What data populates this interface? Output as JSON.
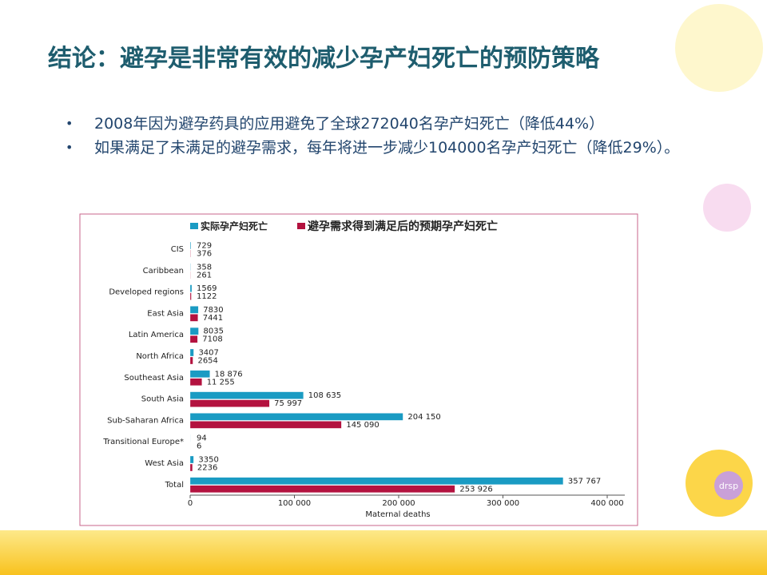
{
  "title": "结论：避孕是非常有效的减少孕产妇死亡的预防策略",
  "bullets": [
    "2008年因为避孕药具的应用避免了全球272040名孕产妇死亡（降低44%）",
    "如果满足了未满足的避孕需求，每年将进一步减少104000名孕产妇死亡（降低29%）。"
  ],
  "chart_data": {
    "type": "bar",
    "orientation": "horizontal",
    "categories": [
      "CIS",
      "Caribbean",
      "Developed regions",
      "East Asia",
      "Latin America",
      "North Africa",
      "Southeast Asia",
      "South Asia",
      "Sub-Saharan Africa",
      "Transitional Europe*",
      "West Asia",
      "Total"
    ],
    "series": [
      {
        "name": "实际孕产妇死亡",
        "color": "#1a9bc3",
        "values": [
          729,
          358,
          1569,
          7830,
          8035,
          3407,
          18876,
          108635,
          204150,
          94,
          3350,
          357767
        ],
        "value_labels": [
          "729",
          "358",
          "1569",
          "7830",
          "8035",
          "3407",
          "18 876",
          "108 635",
          "204 150",
          "94",
          "3350",
          "357 767"
        ]
      },
      {
        "name": "避孕需求得到满足后的预期孕产妇死亡",
        "color": "#b3123f",
        "values": [
          376,
          261,
          1122,
          7441,
          7108,
          2654,
          11255,
          75997,
          145090,
          6,
          2236,
          253926
        ],
        "value_labels": [
          "376",
          "261",
          "1122",
          "7441",
          "7108",
          "2654",
          "11 255",
          "75 997",
          "145 090",
          "6",
          "2236",
          "253 926"
        ]
      }
    ],
    "x_label": "Maternal deaths",
    "xlim": [
      0,
      400000
    ],
    "xticks": [
      0,
      {
        "value": 100000,
        "label": "100 000"
      },
      {
        "value": 200000,
        "label": "200 000"
      },
      {
        "value": 300000,
        "label": "300 000"
      },
      {
        "value": 400000,
        "label": "400 000"
      }
    ]
  }
}
